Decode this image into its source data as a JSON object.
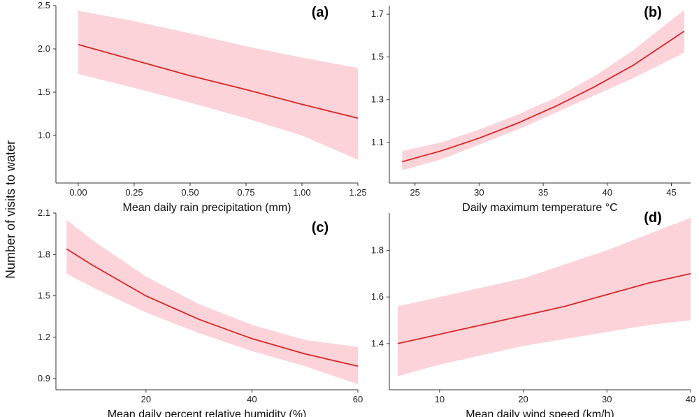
{
  "figure": {
    "ylabel": "Number of visits to water"
  },
  "colors": {
    "line": "#d62728",
    "band": "#fbd3d9",
    "axis": "#333333"
  },
  "chart_data": [
    {
      "type": "line",
      "panel_label": "(a)",
      "xlabel": "Mean daily rain precipitation (mm)",
      "xlim": [
        -0.1,
        1.25
      ],
      "ylim": [
        0.5,
        2.5
      ],
      "xticks": [
        0,
        0.25,
        0.5,
        0.75,
        1.0,
        1.25
      ],
      "xtick_labels": [
        "0.00",
        "0.25",
        "0.50",
        "0.75",
        "1.00",
        "1.25"
      ],
      "yticks": [
        1.0,
        1.5,
        2.0,
        2.5
      ],
      "ytick_labels": [
        "1.0",
        "1.5",
        "2.0",
        "2.5"
      ],
      "series": [
        {
          "name": "fit",
          "x": [
            0,
            0.25,
            0.5,
            0.75,
            1.0,
            1.25
          ],
          "y": [
            2.05,
            1.87,
            1.69,
            1.53,
            1.36,
            1.2
          ],
          "lower": [
            1.71,
            1.55,
            1.38,
            1.2,
            1.0,
            0.72
          ],
          "upper": [
            2.44,
            2.32,
            2.18,
            2.03,
            1.9,
            1.78
          ]
        }
      ]
    },
    {
      "type": "line",
      "panel_label": "(b)",
      "xlabel": "Daily maximum temperature °C",
      "xlim": [
        23,
        46.5
      ],
      "ylim": [
        0.93,
        1.74
      ],
      "xticks": [
        25,
        30,
        35,
        40,
        45
      ],
      "xtick_labels": [
        "25",
        "30",
        "35",
        "40",
        "45"
      ],
      "yticks": [
        1.1,
        1.3,
        1.5,
        1.7
      ],
      "ytick_labels": [
        "1.1",
        "1.3",
        "1.5",
        "1.7"
      ],
      "series": [
        {
          "name": "fit",
          "x": [
            24,
            27,
            30,
            33,
            36,
            39,
            42,
            46
          ],
          "y": [
            1.01,
            1.06,
            1.12,
            1.19,
            1.27,
            1.36,
            1.46,
            1.62
          ],
          "lower": [
            0.97,
            1.02,
            1.09,
            1.16,
            1.24,
            1.32,
            1.4,
            1.52
          ],
          "upper": [
            1.06,
            1.1,
            1.16,
            1.23,
            1.31,
            1.41,
            1.53,
            1.72
          ]
        }
      ]
    },
    {
      "type": "line",
      "panel_label": "(c)",
      "xlabel": "Mean daily percent relative humidity (%)",
      "xlim": [
        3,
        60
      ],
      "ylim": [
        0.85,
        2.1
      ],
      "xticks": [
        20,
        40,
        60
      ],
      "xtick_labels": [
        "20",
        "40",
        "60"
      ],
      "yticks": [
        0.9,
        1.2,
        1.5,
        1.8,
        2.1
      ],
      "ytick_labels": [
        "0.9",
        "1.2",
        "1.5",
        "1.8",
        "2.1"
      ],
      "series": [
        {
          "name": "fit",
          "x": [
            5,
            10,
            20,
            30,
            40,
            50,
            60
          ],
          "y": [
            1.84,
            1.72,
            1.5,
            1.33,
            1.19,
            1.08,
            0.99
          ],
          "lower": [
            1.66,
            1.56,
            1.38,
            1.23,
            1.1,
            0.99,
            0.86
          ],
          "upper": [
            2.05,
            1.9,
            1.64,
            1.44,
            1.29,
            1.18,
            1.13
          ]
        }
      ]
    },
    {
      "type": "line",
      "panel_label": "(d)",
      "xlabel": "Mean daily wind speed (km/h)",
      "xlim": [
        4,
        40
      ],
      "ylim": [
        1.22,
        1.96
      ],
      "xticks": [
        10,
        20,
        30,
        40
      ],
      "xtick_labels": [
        "10",
        "20",
        "30",
        "40"
      ],
      "yticks": [
        1.4,
        1.6,
        1.8
      ],
      "ytick_labels": [
        "1.4",
        "1.6",
        "1.8"
      ],
      "series": [
        {
          "name": "fit",
          "x": [
            5,
            10,
            15,
            20,
            25,
            30,
            35,
            40
          ],
          "y": [
            1.4,
            1.44,
            1.48,
            1.52,
            1.56,
            1.61,
            1.66,
            1.7
          ],
          "lower": [
            1.26,
            1.31,
            1.35,
            1.39,
            1.42,
            1.45,
            1.48,
            1.5
          ],
          "upper": [
            1.56,
            1.6,
            1.64,
            1.68,
            1.74,
            1.8,
            1.87,
            1.94
          ]
        }
      ]
    }
  ]
}
